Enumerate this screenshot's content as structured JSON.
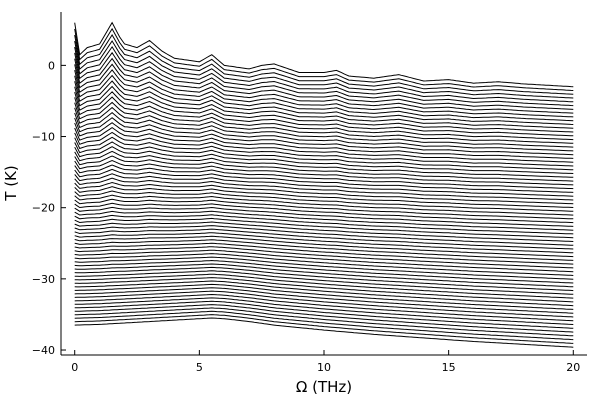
{
  "chart_data": {
    "type": "line",
    "title": "",
    "xlabel": "Ω (THz)",
    "ylabel": "T (K)",
    "xlim": [
      -0.55,
      20.55
    ],
    "ylim": [
      -40.7,
      7.5
    ],
    "xticks": [
      0,
      5,
      10,
      15,
      20
    ],
    "yticks": [
      0,
      -10,
      -20,
      -30,
      -40
    ],
    "xtick_labels": [
      "0",
      "5",
      "10",
      "15",
      "20"
    ],
    "ytick_labels": [
      "0",
      "−10",
      "−20",
      "−30",
      "−40"
    ],
    "grid": false,
    "legend": "none",
    "line_color": "#000000",
    "series_count": 70,
    "top_curve": {
      "x": [
        0,
        0.2,
        0.5,
        1.0,
        1.5,
        1.8,
        2.0,
        2.5,
        3.0,
        3.5,
        4.0,
        5.0,
        5.5,
        6.0,
        7.0,
        7.5,
        8.0,
        9.0,
        10.0,
        10.5,
        11.0,
        12.0,
        13.0,
        14.0,
        15.0,
        16.0,
        17.0,
        18.0,
        19.0,
        20.0
      ],
      "y": [
        6.0,
        1.5,
        2.5,
        3.0,
        6.0,
        4.0,
        3.0,
        2.5,
        3.5,
        2.0,
        1.0,
        0.5,
        1.5,
        0.0,
        -0.5,
        0.0,
        0.2,
        -1.0,
        -1.0,
        -0.7,
        -1.5,
        -1.8,
        -1.3,
        -2.2,
        -2.0,
        -2.5,
        -2.3,
        -2.6,
        -2.8,
        -3.0
      ]
    },
    "bottom_curve": {
      "x": [
        0,
        1.0,
        2.0,
        3.0,
        4.0,
        5.0,
        5.5,
        6.0,
        7.0,
        8.0,
        10.0,
        12.0,
        14.0,
        16.0,
        18.0,
        20.0
      ],
      "y": [
        -36.5,
        -36.4,
        -36.2,
        -36.0,
        -35.8,
        -35.6,
        -35.5,
        -35.6,
        -36.0,
        -36.5,
        -37.2,
        -37.8,
        -38.3,
        -38.8,
        -39.2,
        -39.6
      ]
    }
  }
}
